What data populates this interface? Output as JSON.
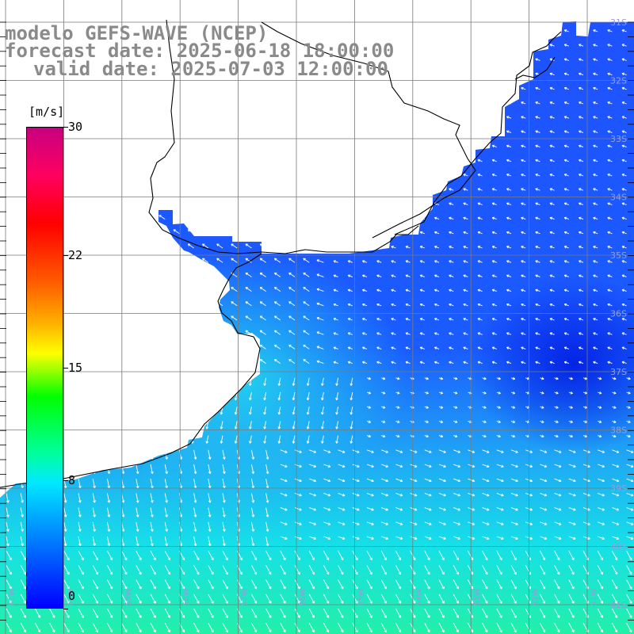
{
  "title": {
    "line1": "modelo GEFS-WAVE (NCEP)",
    "line2": "forecast date: 2025-06-18 18:00:00",
    "line3": "valid date: 2025-07-03 12:00:00"
  },
  "colorbar": {
    "unit": "[m/s]",
    "ticks": [
      "0",
      "8",
      "15",
      "22",
      "30"
    ],
    "min": 0,
    "max": 30,
    "colors": [
      "#0000ff",
      "#00a0ff",
      "#00e8ff",
      "#00ff00",
      "#ffff00",
      "#ff5a00",
      "#ff0000",
      "#c8007f"
    ]
  },
  "map": {
    "region": "Rio de la Plata / Uruguay coast, South Atlantic",
    "lat_labels": [
      "31S",
      "32S",
      "33S",
      "34S",
      "35S",
      "36S",
      "37S",
      "38S",
      "39S",
      "40S",
      "41S"
    ],
    "lon_labels": [
      "61W",
      "60W",
      "59W",
      "58W",
      "57W",
      "56W",
      "55W",
      "54W",
      "53W",
      "52W",
      "51W"
    ],
    "land_color": "#ffffff",
    "coast_color": "#000000",
    "grid_color": "#7a7a7a",
    "arrow_color": "#ffffff"
  }
}
